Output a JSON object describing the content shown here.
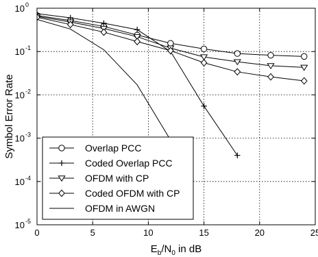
{
  "chart_data": {
    "type": "line",
    "title": "",
    "xlabel": {
      "base": "E",
      "sub1": "b",
      "mid": "/N",
      "sub2": "0",
      "rest": " in dB"
    },
    "ylabel": "Symbol Error Rate",
    "xlim": [
      0,
      25
    ],
    "ylim": [
      1e-05,
      1
    ],
    "yscale": "log",
    "grid": true,
    "grid_style": "dotted",
    "legend_position": "bottom-left",
    "x_ticks": [
      0,
      5,
      10,
      15,
      20,
      25
    ],
    "x_tick_labels": [
      "0",
      "5",
      "10",
      "15",
      "20",
      "25"
    ],
    "y_ticks": [
      1e-05,
      0.0001,
      0.001,
      0.01,
      0.1,
      1
    ],
    "y_tick_labels": [
      {
        "base": "10",
        "exp": "-5"
      },
      {
        "base": "10",
        "exp": "-4"
      },
      {
        "base": "10",
        "exp": "-3"
      },
      {
        "base": "10",
        "exp": "-2"
      },
      {
        "base": "10",
        "exp": "-1"
      },
      {
        "base": "10",
        "exp": "0"
      }
    ],
    "series": [
      {
        "name": "Overlap PCC",
        "marker": "circle",
        "x": [
          0,
          3,
          6,
          9,
          12,
          15,
          18,
          21,
          24
        ],
        "y": [
          0.68,
          0.52,
          0.38,
          0.24,
          0.155,
          0.115,
          0.09,
          0.082,
          0.077
        ]
      },
      {
        "name": "Coded Overlap PCC",
        "marker": "plus",
        "x": [
          0,
          3,
          6,
          9,
          12,
          15,
          18
        ],
        "y": [
          0.75,
          0.6,
          0.45,
          0.32,
          0.1,
          0.0055,
          0.0004
        ]
      },
      {
        "name": "OFDM with CP",
        "marker": "triangle-down",
        "x": [
          0,
          3,
          6,
          9,
          12,
          15,
          18,
          21,
          24
        ],
        "y": [
          0.65,
          0.48,
          0.34,
          0.22,
          0.12,
          0.075,
          0.058,
          0.047,
          0.043
        ]
      },
      {
        "name": "Coded OFDM with CP",
        "marker": "diamond",
        "x": [
          0,
          3,
          6,
          9,
          12,
          15,
          18,
          21,
          24
        ],
        "y": [
          0.62,
          0.42,
          0.28,
          0.17,
          0.105,
          0.055,
          0.034,
          0.026,
          0.021
        ]
      },
      {
        "name": "OFDM in AWGN",
        "marker": "none",
        "x": [
          0,
          3,
          6,
          9,
          12
        ],
        "y": [
          0.55,
          0.33,
          0.11,
          0.017,
          0.0009
        ]
      }
    ]
  }
}
